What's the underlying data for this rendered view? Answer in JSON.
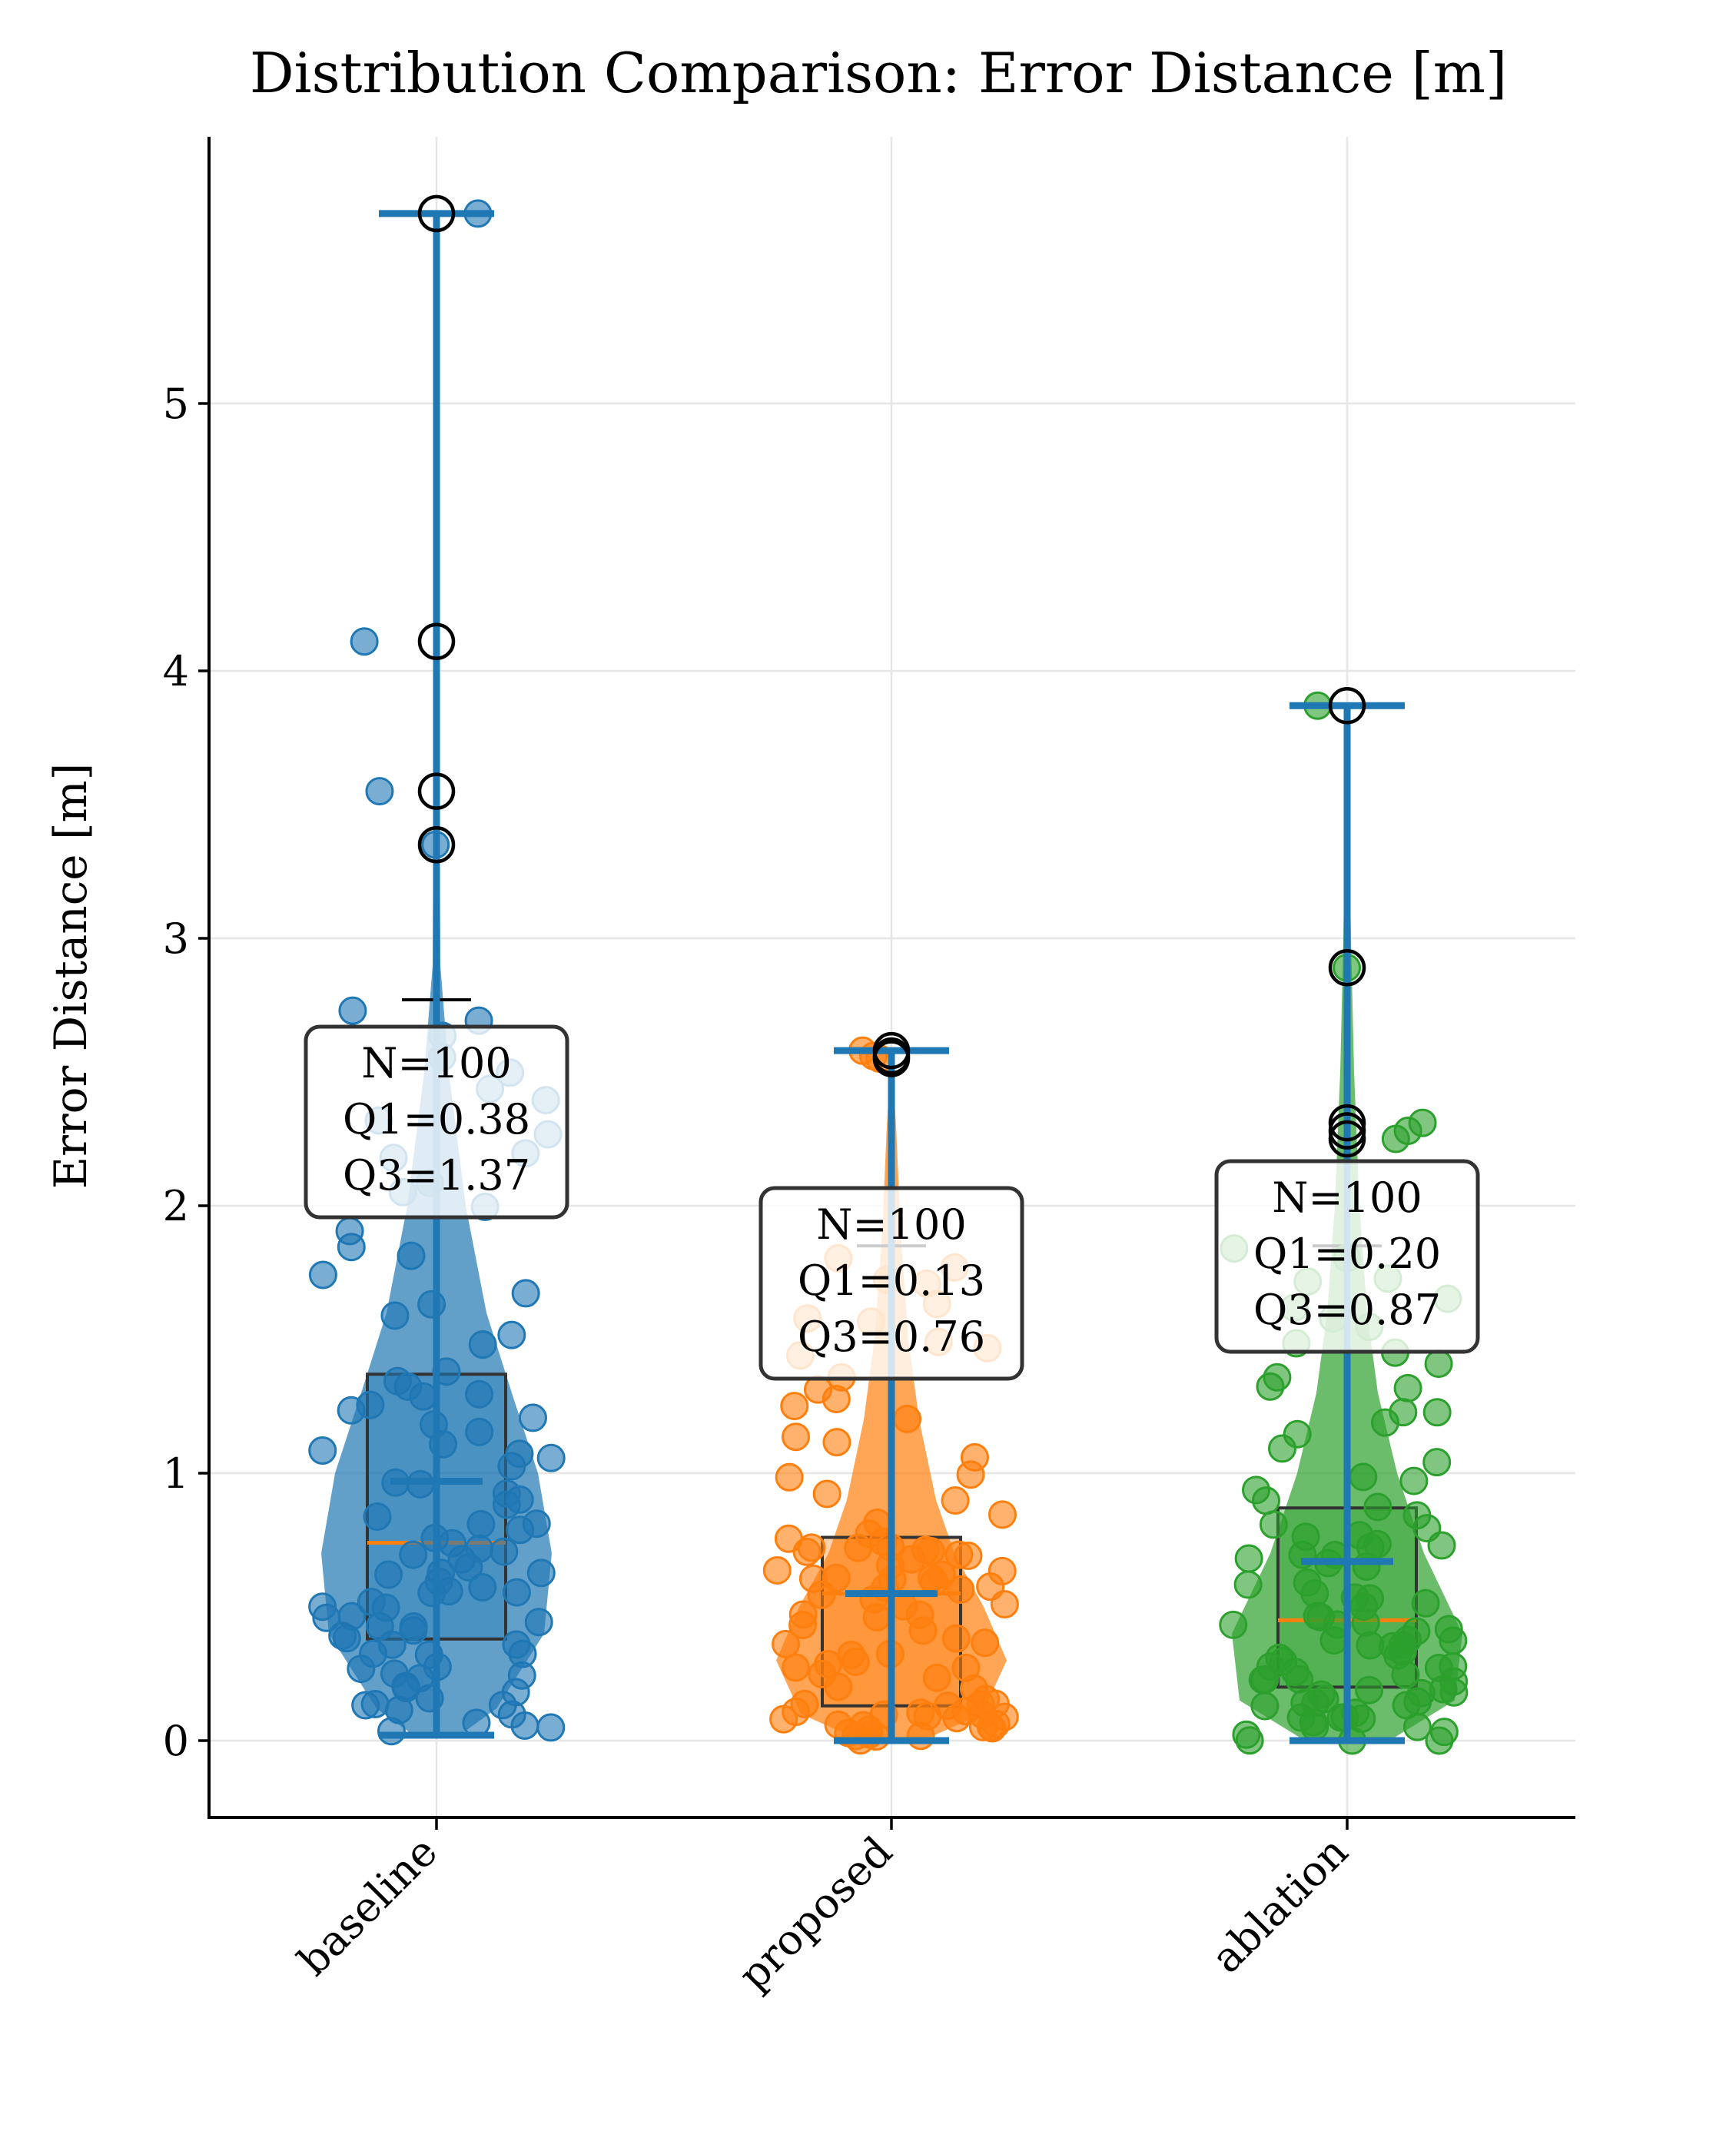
{
  "chart_data": {
    "type": "violin",
    "title": "Distribution Comparison: Error Distance [m]",
    "xlabel": "",
    "ylabel": "Error Distance [m]",
    "ylim": [
      -0.28,
      5.95
    ],
    "yticks": [
      0,
      1,
      2,
      3,
      4,
      5
    ],
    "grid": true,
    "colors": {
      "baseline": "#1f77b4",
      "proposed": "#ff7f0e",
      "ablation": "#2ca02c"
    },
    "categories": [
      "baseline",
      "proposed",
      "ablation"
    ],
    "series": [
      {
        "name": "baseline",
        "n": 100,
        "q1": 0.38,
        "median": 0.74,
        "q3": 1.37,
        "whisker_low": 0.02,
        "whisker_high": 2.77,
        "min": 0.02,
        "max": 5.71,
        "mean": 0.97,
        "outliers": [
          5.71,
          4.11,
          3.55,
          3.35
        ],
        "annotation": [
          "N=100",
          "Q1=0.38",
          "Q3=1.37"
        ]
      },
      {
        "name": "proposed",
        "n": 100,
        "q1": 0.13,
        "median": 0.55,
        "q3": 0.76,
        "whisker_low": 0.0,
        "whisker_high": 1.85,
        "min": 0.0,
        "max": 2.58,
        "mean": 0.55,
        "outliers": [
          2.58,
          2.56,
          2.55
        ],
        "annotation": [
          "N=100",
          "Q1=0.13",
          "Q3=0.76"
        ]
      },
      {
        "name": "ablation",
        "n": 100,
        "q1": 0.2,
        "median": 0.45,
        "q3": 0.87,
        "whisker_low": 0.0,
        "whisker_high": 1.85,
        "min": 0.0,
        "max": 3.87,
        "mean": 0.67,
        "outliers": [
          3.87,
          2.89,
          2.31,
          2.28,
          2.25
        ],
        "annotation": [
          "N=100",
          "Q1=0.20",
          "Q3=0.87"
        ]
      }
    ]
  }
}
